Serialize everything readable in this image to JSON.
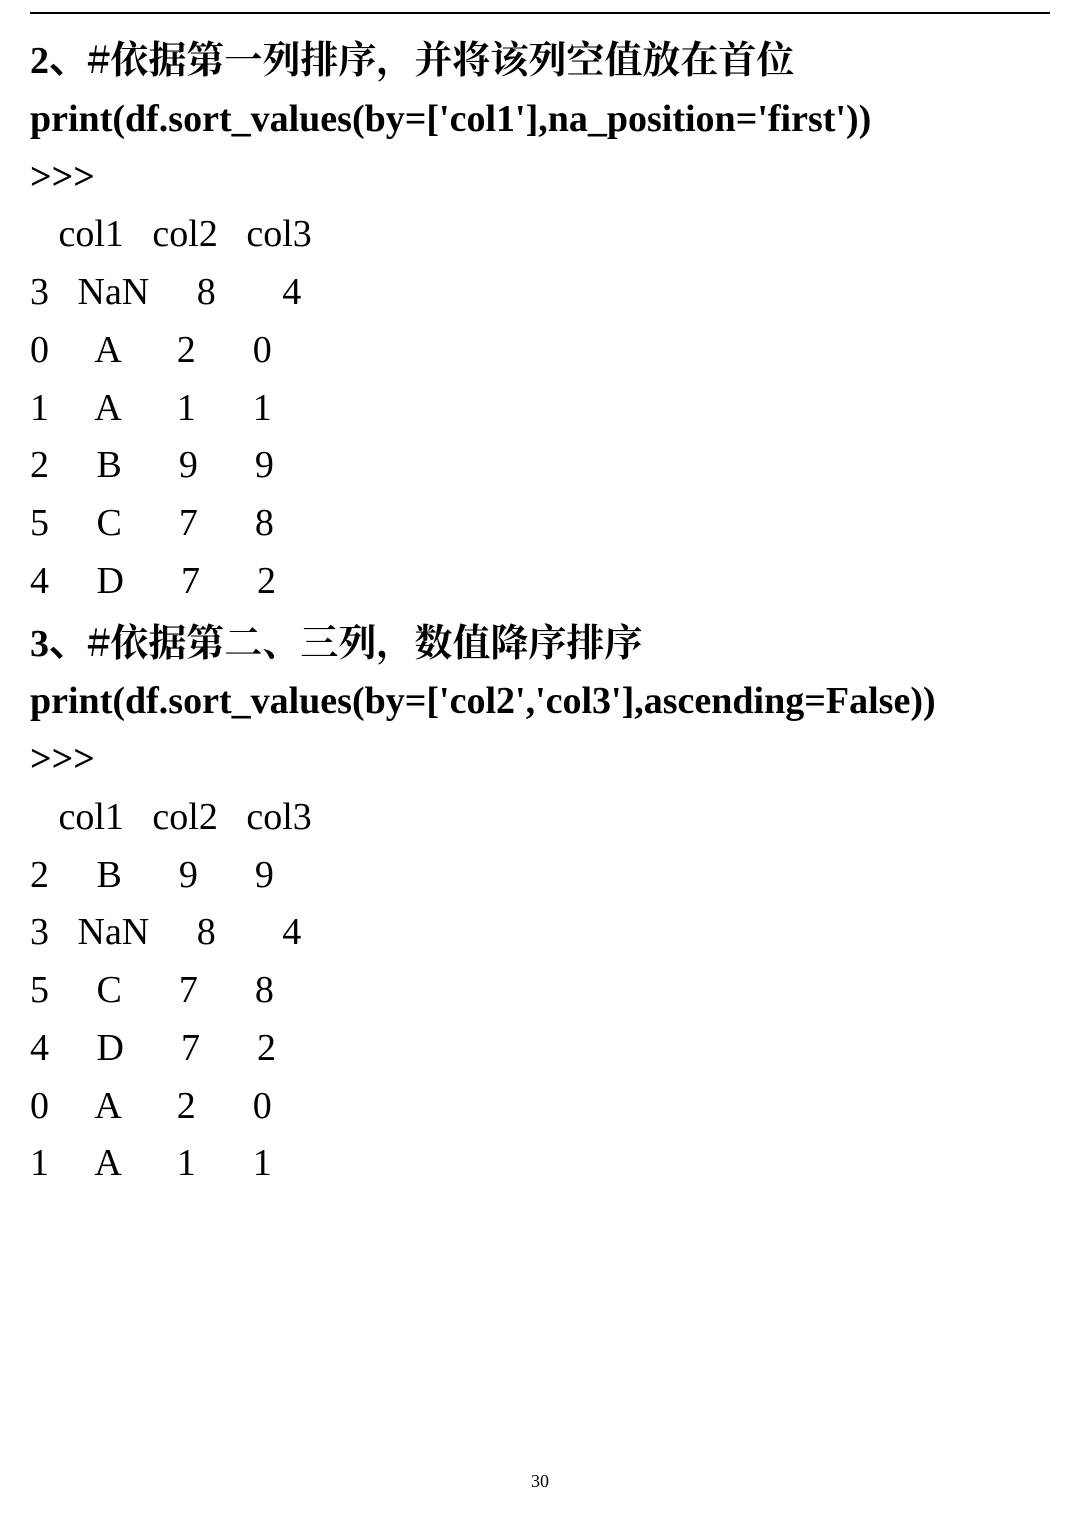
{
  "section1": {
    "title_prefix": "2、",
    "title_text": "#依据第一列排序，并将该列空值放在首位",
    "code": "print(df.sort_values(by=['col1'],na_position='first'))",
    "prompt": ">>>",
    "header": {
      "c1": "col1",
      "c2": "col2",
      "c3": "col3"
    },
    "rows": [
      {
        "idx": "3",
        "c1": "NaN",
        "c2": "8",
        "c3": "4"
      },
      {
        "idx": "0",
        "c1": "A",
        "c2": "2",
        "c3": "0"
      },
      {
        "idx": "1",
        "c1": "A",
        "c2": "1",
        "c3": "1"
      },
      {
        "idx": "2",
        "c1": "B",
        "c2": "9",
        "c3": "9"
      },
      {
        "idx": "5",
        "c1": "C",
        "c2": "7",
        "c3": "8"
      },
      {
        "idx": "4",
        "c1": "D",
        "c2": "7",
        "c3": "2"
      }
    ]
  },
  "section2": {
    "title_prefix": "3、",
    "title_text": "#依据第二、三列，数值降序排序",
    "code": "print(df.sort_values(by=['col2','col3'],ascending=False))",
    "prompt": ">>>",
    "header": {
      "c1": "col1",
      "c2": "col2",
      "c3": "col3"
    },
    "rows": [
      {
        "idx": "2",
        "c1": "B",
        "c2": "9",
        "c3": "9"
      },
      {
        "idx": "3",
        "c1": "NaN",
        "c2": "8",
        "c3": "4"
      },
      {
        "idx": "5",
        "c1": "C",
        "c2": "7",
        "c3": "8"
      },
      {
        "idx": "4",
        "c1": "D",
        "c2": "7",
        "c3": "2"
      },
      {
        "idx": "0",
        "c1": "A",
        "c2": "2",
        "c3": "0"
      },
      {
        "idx": "1",
        "c1": "A",
        "c2": "1",
        "c3": "1"
      }
    ]
  },
  "page_number": "30",
  "style": {
    "font_size_body": 38,
    "font_size_pagenum": 18,
    "text_color": "#000000",
    "bg_color": "#ffffff",
    "border_color": "#000000"
  }
}
